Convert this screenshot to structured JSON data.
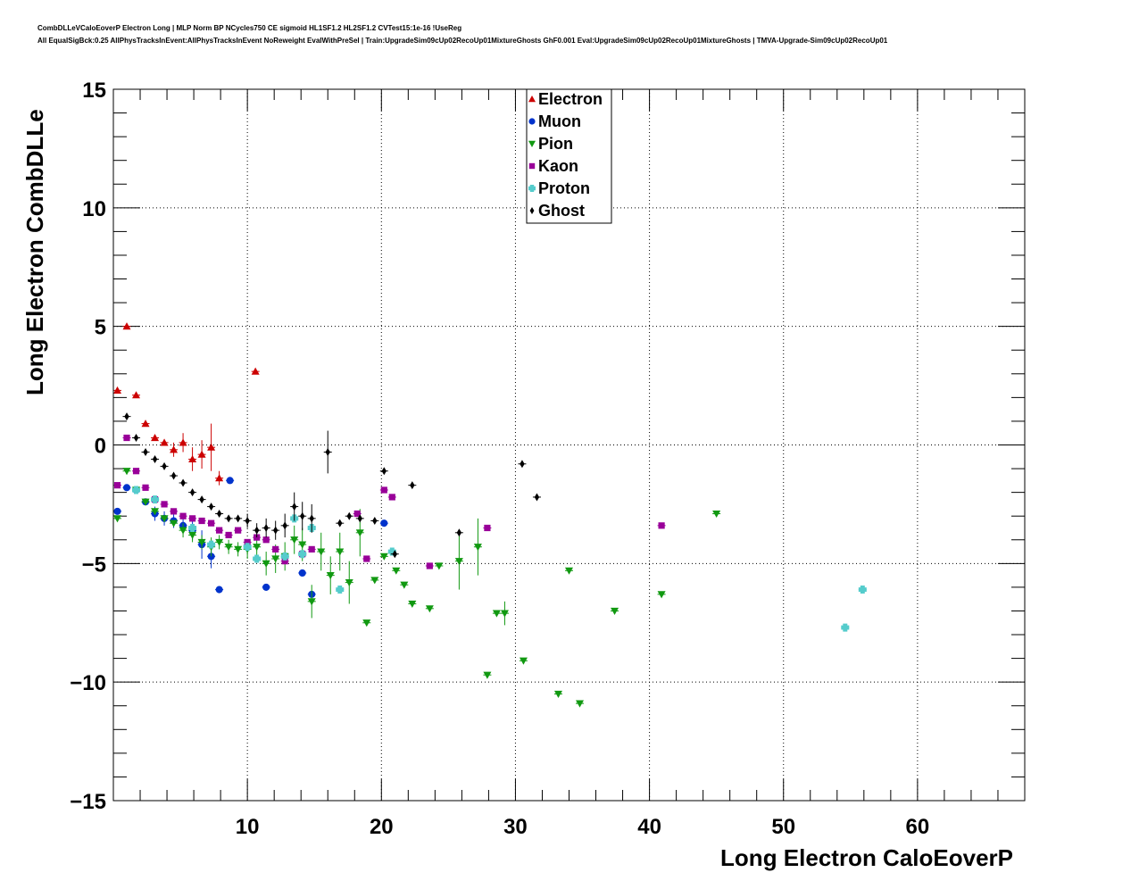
{
  "chart_data": {
    "type": "scatter",
    "title_line1": "CombDLLeVCaloEoverP Electron Long | MLP Norm BP NCycles750 CE sigmoid HL1SF1.2 HL2SF1.2 CVTest15:1e-16 !UseReg",
    "title_line2": "All EqualSigBck:0.25 AllPhysTracksInEvent:AllPhysTracksInEvent NoReweight EvalWithPreSel | Train:UpgradeSim09cUp02RecoUp01MixtureGhosts GhF0.001 Eval:UpgradeSim09cUp02RecoUp01MixtureGhosts | TMVA-Upgrade-Sim09cUp02RecoUp01",
    "xlabel": "Long Electron CaloEoverP",
    "ylabel": "Long Electron CombDLLe",
    "xlim": [
      0,
      68
    ],
    "ylim": [
      -15,
      15
    ],
    "xticks": [
      10,
      20,
      30,
      40,
      50,
      60
    ],
    "yticks": [
      15,
      10,
      5,
      0,
      -5,
      -10,
      -15
    ],
    "ytick_labels": [
      "15",
      "10",
      "5",
      "0",
      "−5",
      "−10",
      "−15"
    ],
    "grid": true,
    "legend_position": "top-center",
    "series": [
      {
        "name": "Electron",
        "color": "#cc0000",
        "marker": "triangle-up",
        "points": [
          [
            0.3,
            2.3,
            0
          ],
          [
            1,
            5,
            0
          ],
          [
            1.7,
            2.1,
            0
          ],
          [
            2.4,
            0.9,
            0
          ],
          [
            3.1,
            0.3,
            0
          ],
          [
            3.8,
            0.1,
            0
          ],
          [
            4.5,
            -0.2,
            0.3
          ],
          [
            5.2,
            0.1,
            0.4
          ],
          [
            5.9,
            -0.6,
            0.5
          ],
          [
            6.6,
            -0.4,
            0.6
          ],
          [
            7.3,
            -0.1,
            1.0
          ],
          [
            7.9,
            -1.4,
            0.3
          ],
          [
            10.6,
            3.1,
            0
          ]
        ]
      },
      {
        "name": "Muon",
        "color": "#0033cc",
        "marker": "circle",
        "points": [
          [
            0.3,
            -2.8,
            0
          ],
          [
            1,
            -1.8,
            0
          ],
          [
            1.7,
            -1.9,
            0
          ],
          [
            2.4,
            -2.4,
            0
          ],
          [
            3.1,
            -2.9,
            0.3
          ],
          [
            3.8,
            -3.1,
            0.3
          ],
          [
            4.5,
            -3.2,
            0.3
          ],
          [
            5.2,
            -3.4,
            0.3
          ],
          [
            5.9,
            -3.6,
            0.4
          ],
          [
            6.6,
            -4.2,
            0.6
          ],
          [
            7.3,
            -4.7,
            0.5
          ],
          [
            7.9,
            -6.1,
            0
          ],
          [
            8.7,
            -1.5,
            0
          ],
          [
            11.4,
            -6.0,
            0
          ],
          [
            14.1,
            -5.4,
            0
          ],
          [
            14.8,
            -6.3,
            0
          ],
          [
            20.2,
            -3.3,
            0
          ]
        ]
      },
      {
        "name": "Pion",
        "color": "#119911",
        "marker": "triangle-down",
        "points": [
          [
            0.3,
            -3.1,
            0
          ],
          [
            1,
            -1.1,
            0
          ],
          [
            1.7,
            -1.9,
            0
          ],
          [
            2.4,
            -2.4,
            0
          ],
          [
            3.1,
            -2.8,
            0
          ],
          [
            3.8,
            -3.1,
            0
          ],
          [
            4.5,
            -3.3,
            0
          ],
          [
            5.2,
            -3.6,
            0.3
          ],
          [
            5.9,
            -3.8,
            0.3
          ],
          [
            6.6,
            -4.1,
            0.3
          ],
          [
            7.3,
            -4.3,
            0.4
          ],
          [
            7.9,
            -4.1,
            0.3
          ],
          [
            8.6,
            -4.3,
            0.3
          ],
          [
            9.3,
            -4.4,
            0.3
          ],
          [
            10,
            -4.4,
            0.4
          ],
          [
            10.7,
            -4.3,
            0.4
          ],
          [
            11.4,
            -5.0,
            0.5
          ],
          [
            12.1,
            -4.8,
            0.6
          ],
          [
            12.8,
            -4.7,
            0.6
          ],
          [
            13.5,
            -4.0,
            0.6
          ],
          [
            14.1,
            -4.2,
            0.7
          ],
          [
            14.8,
            -6.6,
            0.7
          ],
          [
            15.5,
            -4.5,
            0.8
          ],
          [
            16.2,
            -5.5,
            0.8
          ],
          [
            16.9,
            -4.5,
            0.8
          ],
          [
            17.6,
            -5.8,
            0.9
          ],
          [
            18.4,
            -3.7,
            1.0
          ],
          [
            18.9,
            -7.5,
            0
          ],
          [
            19.5,
            -5.7,
            0
          ],
          [
            20.2,
            -4.7,
            0
          ],
          [
            21.1,
            -5.3,
            0
          ],
          [
            21.7,
            -5.9,
            0
          ],
          [
            22.3,
            -6.7,
            0
          ],
          [
            23.6,
            -6.9,
            0
          ],
          [
            24.3,
            -5.1,
            0
          ],
          [
            25.8,
            -4.9,
            1.2
          ],
          [
            27.2,
            -4.3,
            1.2
          ],
          [
            27.9,
            -9.7,
            0
          ],
          [
            28.6,
            -7.1,
            0
          ],
          [
            29.2,
            -7.1,
            0.5
          ],
          [
            30.6,
            -9.1,
            0
          ],
          [
            33.2,
            -10.5,
            0
          ],
          [
            34.0,
            -5.3,
            0
          ],
          [
            34.8,
            -10.9,
            0
          ],
          [
            37.4,
            -7.0,
            0
          ],
          [
            40.9,
            -6.3,
            0
          ],
          [
            45.0,
            -2.9,
            0
          ]
        ]
      },
      {
        "name": "Kaon",
        "color": "#990099",
        "marker": "square",
        "points": [
          [
            0.3,
            -1.7,
            0
          ],
          [
            1,
            0.3,
            0
          ],
          [
            1.7,
            -1.1,
            0
          ],
          [
            2.4,
            -1.8,
            0
          ],
          [
            3.1,
            -2.3,
            0
          ],
          [
            3.8,
            -2.5,
            0
          ],
          [
            4.5,
            -2.8,
            0
          ],
          [
            5.2,
            -3.0,
            0
          ],
          [
            5.9,
            -3.1,
            0
          ],
          [
            6.6,
            -3.2,
            0
          ],
          [
            7.3,
            -3.3,
            0
          ],
          [
            7.9,
            -3.6,
            0
          ],
          [
            8.6,
            -3.8,
            0
          ],
          [
            9.3,
            -3.6,
            0
          ],
          [
            10,
            -4.1,
            0
          ],
          [
            10.7,
            -3.9,
            0
          ],
          [
            11.4,
            -4.0,
            0
          ],
          [
            12.1,
            -4.4,
            0
          ],
          [
            12.8,
            -4.9,
            0
          ],
          [
            14.1,
            -4.6,
            0
          ],
          [
            14.8,
            -4.4,
            0
          ],
          [
            18.2,
            -2.9,
            0
          ],
          [
            18.9,
            -4.8,
            0
          ],
          [
            20.2,
            -1.9,
            0
          ],
          [
            20.8,
            -2.2,
            0
          ],
          [
            23.6,
            -5.1,
            0
          ],
          [
            27.9,
            -3.5,
            0
          ],
          [
            40.9,
            -3.4,
            0
          ]
        ]
      },
      {
        "name": "Proton",
        "color": "#55cccc",
        "marker": "cross",
        "points": [
          [
            1.7,
            -1.9,
            0
          ],
          [
            3.1,
            -2.3,
            0
          ],
          [
            5.9,
            -3.5,
            0
          ],
          [
            7.3,
            -4.2,
            0
          ],
          [
            10,
            -4.3,
            0
          ],
          [
            10.7,
            -4.8,
            0
          ],
          [
            12.8,
            -4.7,
            0
          ],
          [
            13.5,
            -3.1,
            0
          ],
          [
            14.1,
            -4.6,
            0
          ],
          [
            14.8,
            -3.5,
            0
          ],
          [
            16.9,
            -6.1,
            0
          ],
          [
            20.8,
            -4.5,
            0
          ],
          [
            54.6,
            -7.7,
            0
          ],
          [
            55.9,
            -6.1,
            0
          ]
        ]
      },
      {
        "name": "Ghost",
        "color": "#000000",
        "marker": "diamond",
        "points": [
          [
            1,
            1.2,
            0
          ],
          [
            1.7,
            0.3,
            0
          ],
          [
            2.4,
            -0.3,
            0
          ],
          [
            3.1,
            -0.6,
            0
          ],
          [
            3.8,
            -0.9,
            0
          ],
          [
            4.5,
            -1.3,
            0
          ],
          [
            5.2,
            -1.6,
            0
          ],
          [
            5.9,
            -2.0,
            0
          ],
          [
            6.6,
            -2.3,
            0
          ],
          [
            7.3,
            -2.6,
            0
          ],
          [
            7.9,
            -2.9,
            0
          ],
          [
            8.6,
            -3.1,
            0
          ],
          [
            9.3,
            -3.1,
            0
          ],
          [
            10,
            -3.2,
            0.3
          ],
          [
            10.7,
            -3.6,
            0.3
          ],
          [
            11.4,
            -3.5,
            0.4
          ],
          [
            12.1,
            -3.6,
            0.4
          ],
          [
            12.8,
            -3.4,
            0.5
          ],
          [
            13.5,
            -2.6,
            0.6
          ],
          [
            14.1,
            -3.0,
            0.6
          ],
          [
            14.8,
            -3.1,
            0.6
          ],
          [
            16.0,
            -0.3,
            0.9
          ],
          [
            16.9,
            -3.3,
            0
          ],
          [
            17.6,
            -3.0,
            0
          ],
          [
            18.4,
            -3.1,
            0
          ],
          [
            19.5,
            -3.2,
            0
          ],
          [
            20.2,
            -1.1,
            0
          ],
          [
            21.0,
            -4.6,
            0
          ],
          [
            22.3,
            -1.7,
            0
          ],
          [
            25.8,
            -3.7,
            0
          ],
          [
            30.5,
            -0.8,
            0
          ],
          [
            31.6,
            -2.2,
            0
          ]
        ]
      }
    ]
  }
}
